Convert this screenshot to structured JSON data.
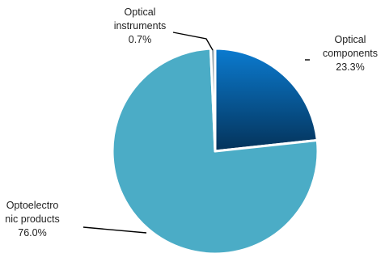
{
  "chart_data": {
    "type": "pie",
    "start_angle_deg": 0,
    "direction": "clockwise",
    "slices": [
      {
        "name": "Optical components",
        "value": 23.3,
        "percent_label": "23.3%",
        "label_lines": [
          "Optical",
          "components",
          "23.3%"
        ],
        "color": "#005A96",
        "gradient": [
          "#0B7BD0",
          "#04335A"
        ]
      },
      {
        "name": "Optoelectronic products",
        "value": 76.0,
        "percent_label": "76.0%",
        "label_lines": [
          "Optoelectro",
          "nic products",
          "76.0%"
        ],
        "color": "#4BACC6"
      },
      {
        "name": "Optical instruments",
        "value": 0.7,
        "percent_label": "0.7%",
        "label_lines": [
          "Optical",
          "instruments",
          "0.7%"
        ],
        "color": "#9AA7B0"
      }
    ]
  }
}
